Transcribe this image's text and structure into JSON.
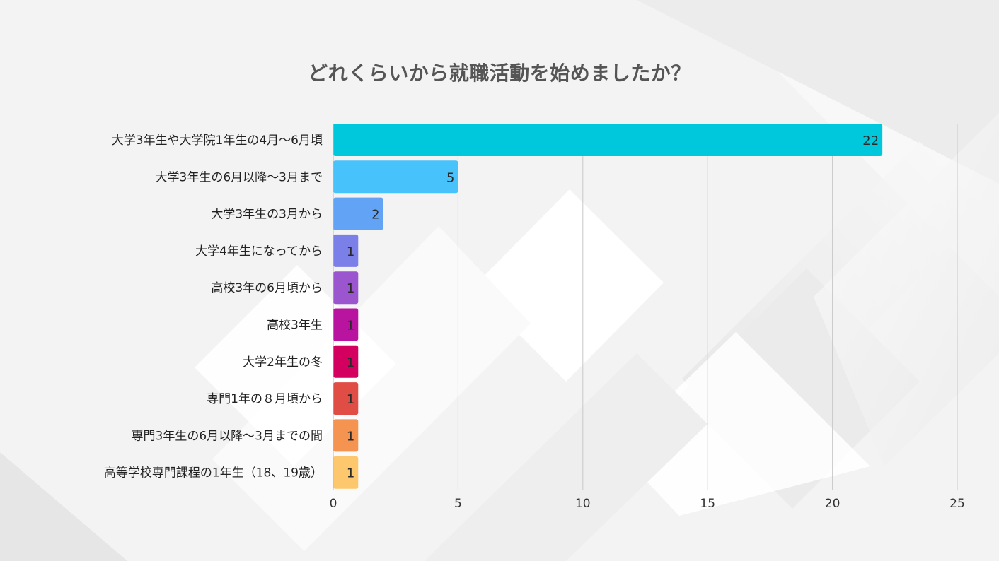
{
  "chart_data": {
    "type": "bar",
    "orientation": "horizontal",
    "title": "どれくらいから就職活動を始めましたか？",
    "categories": [
      "大学3年生や大学院1年生の4月〜6月頃",
      "大学3年生の6月以降〜3月まで",
      "大学3年生の3月から",
      "大学4年生になってから",
      "高校3年の6月頃から",
      "高校3年生",
      "大学2年生の冬",
      "専門1年の８月頃から",
      "専門3年生の6月以降〜3月までの間",
      "高等学校専門課程の1年生（18、19歳）"
    ],
    "values": [
      22,
      5,
      2,
      1,
      1,
      1,
      1,
      1,
      1,
      1
    ],
    "colors": [
      "#00c8dc",
      "#47c2fb",
      "#63a3f6",
      "#7b80e8",
      "#9a55cf",
      "#b9149f",
      "#d4005f",
      "#e04d45",
      "#f59350",
      "#fdc86d"
    ],
    "xlim": [
      0,
      25
    ],
    "xticks": [
      0,
      5,
      10,
      15,
      20,
      25
    ],
    "grid": true,
    "legend": "none"
  }
}
